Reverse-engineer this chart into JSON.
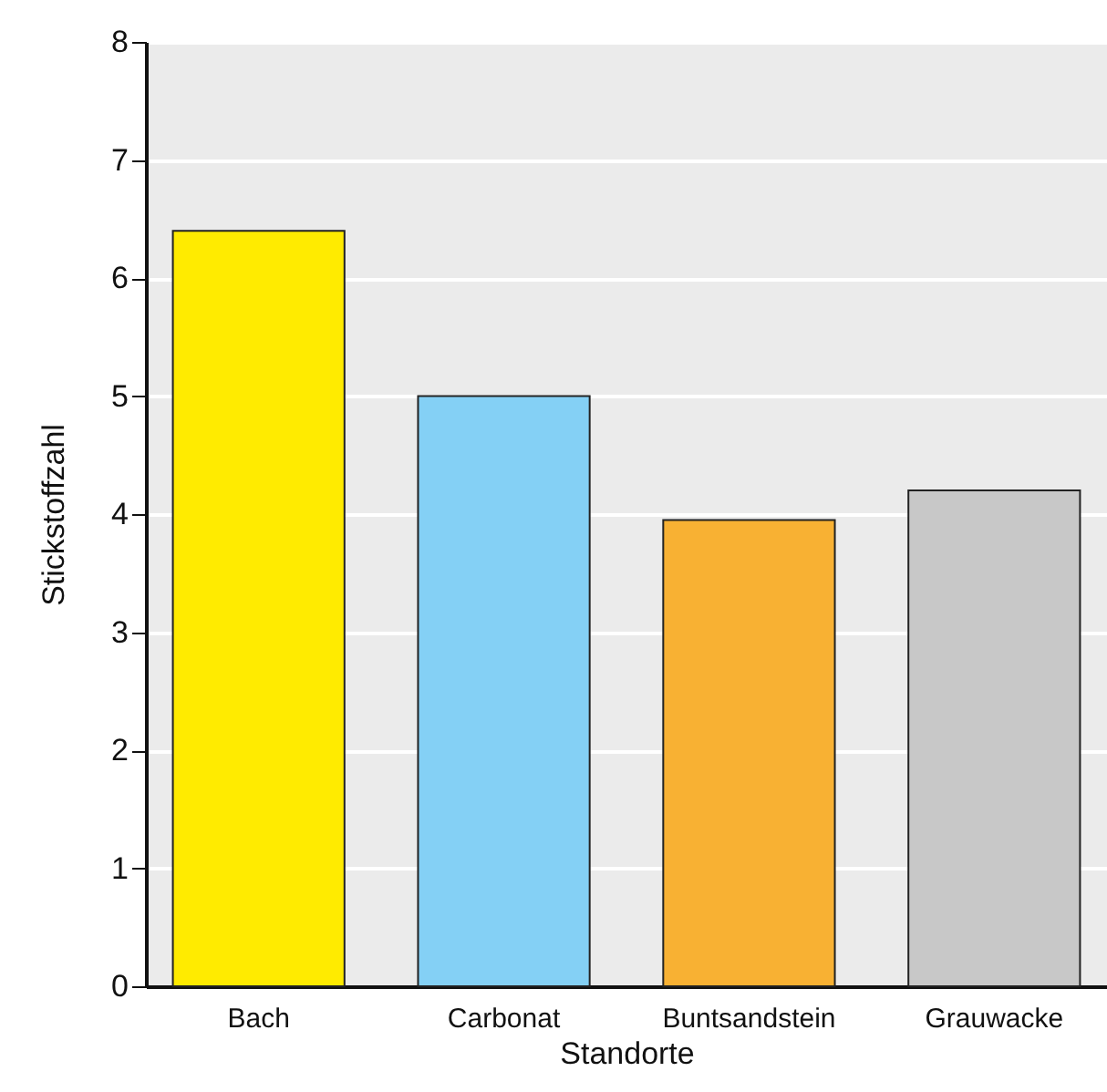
{
  "chart_data": {
    "type": "bar",
    "xlabel": "Standorte",
    "ylabel": "Stickstoffzahl",
    "categories": [
      "Bach",
      "Carbonat",
      "Buntsandstein",
      "Grauwacke"
    ],
    "values": [
      6.4,
      5.0,
      3.95,
      4.2
    ],
    "colors": [
      "#ffeb00",
      "#84d0f5",
      "#f8b133",
      "#c8c8c8"
    ],
    "ylim": [
      0,
      8
    ],
    "yticks": [
      0,
      1,
      2,
      3,
      4,
      5,
      6,
      7,
      8
    ],
    "grid": "y"
  }
}
